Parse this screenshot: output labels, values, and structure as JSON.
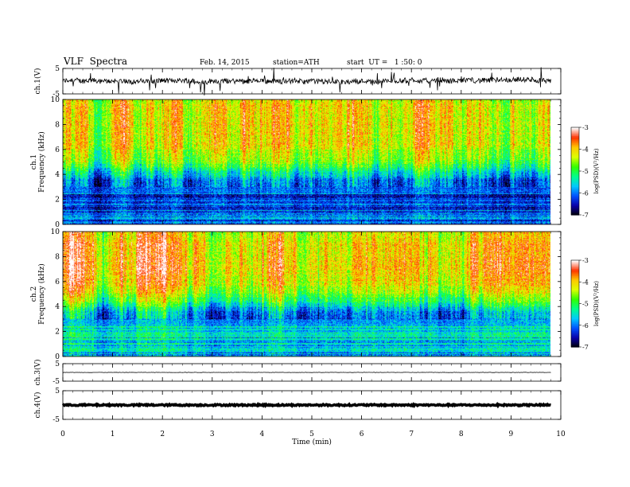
{
  "header": {
    "title": "VLF  Spectra",
    "date": "Feb. 14, 2015",
    "station": "station=ATH",
    "start_ut": "start  UT =   1 :50: 0"
  },
  "chart_data": [
    {
      "type": "line",
      "ylabel": "ch.1(V)",
      "ylim": [
        -5,
        5
      ],
      "yticks": [
        5,
        -5
      ],
      "description_values": {
        "mean": 0,
        "noise_amplitude": 1
      },
      "color": "#000000"
    },
    {
      "type": "heatmap",
      "ylabel": "ch.1\nFrequency  (kHz)",
      "ylim": [
        0,
        10
      ],
      "yticks": [
        0,
        2,
        4,
        6,
        8,
        10
      ],
      "xlim": [
        0,
        10
      ],
      "data_extent_min": 9.8,
      "colorbar": {
        "label": "log(PSD)(V²/Hz)",
        "ticks": [
          -3,
          -4,
          -5,
          -6,
          -7
        ],
        "range": [
          -7,
          -3
        ]
      },
      "profile_khz": [
        {
          "f": 0.0,
          "v": -6.0
        },
        {
          "f": 2.3,
          "v": -6.2
        },
        {
          "f": 2.6,
          "v": -6.1
        },
        {
          "f": 3.5,
          "v": -6.0
        },
        {
          "f": 4.2,
          "v": -5.4
        },
        {
          "f": 5.0,
          "v": -4.7
        },
        {
          "f": 6.5,
          "v": -4.2
        },
        {
          "f": 8.0,
          "v": -4.1
        },
        {
          "f": 10.0,
          "v": -4.2
        }
      ]
    },
    {
      "type": "heatmap",
      "ylabel": "ch.2\nFrequency  (kHz)",
      "ylim": [
        0,
        10
      ],
      "yticks": [
        0,
        2,
        4,
        6,
        8,
        10
      ],
      "xlim": [
        0,
        10
      ],
      "data_extent_min": 9.8,
      "colorbar": {
        "label": "log(PSD)(V²/Hz)",
        "ticks": [
          -3,
          -4,
          -5,
          -6,
          -7
        ],
        "range": [
          -7,
          -3
        ]
      },
      "profile_khz": [
        {
          "f": 0.0,
          "v": -5.6
        },
        {
          "f": 2.0,
          "v": -5.4
        },
        {
          "f": 3.0,
          "v": -5.8
        },
        {
          "f": 3.6,
          "v": -5.6
        },
        {
          "f": 4.4,
          "v": -4.8
        },
        {
          "f": 5.5,
          "v": -4.0
        },
        {
          "f": 7.0,
          "v": -3.7
        },
        {
          "f": 9.0,
          "v": -3.8
        },
        {
          "f": 10.0,
          "v": -4.0
        }
      ]
    },
    {
      "type": "line",
      "ylabel": "ch.3(V)",
      "ylim": [
        -5,
        5
      ],
      "yticks": [
        5,
        -5
      ],
      "description_values": {
        "mean": 0,
        "noise_amplitude": 0.1
      },
      "color": "#000000"
    },
    {
      "type": "line",
      "ylabel": "ch.4(V)",
      "ylim": [
        -5,
        5
      ],
      "yticks": [
        5,
        -5
      ],
      "description_values": {
        "mean": 0,
        "noise_amplitude": 0.25
      },
      "color": "#000000"
    }
  ],
  "xaxis": {
    "label": "Time  (min)",
    "ticks": [
      0,
      1,
      2,
      3,
      4,
      5,
      6,
      7,
      8,
      9,
      10
    ],
    "range": [
      0,
      10
    ]
  },
  "colormap": [
    "#000000",
    "#0a00a8",
    "#0050ff",
    "#00c8ff",
    "#00ff8c",
    "#32ff00",
    "#dcff00",
    "#ffc800",
    "#ff3200",
    "#ffffff"
  ]
}
